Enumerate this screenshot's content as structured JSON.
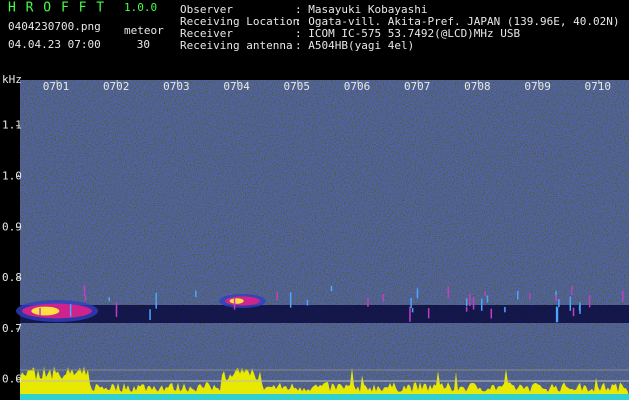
{
  "header": {
    "title": "H R O F F T",
    "version": "1.0.0",
    "filename": "0404230700.png",
    "datetime": "04.04.23 07:00",
    "meteor_label": "meteor",
    "meteor_count": 30
  },
  "info": [
    {
      "label": "Observer",
      "value": ": Masayuki Kobayashi"
    },
    {
      "label": "Receiving Location",
      "value": ": Ogata-vill. Akita-Pref. JAPAN (139.96E, 40.02N)"
    },
    {
      "label": "Receiver",
      "value": ": ICOM IC-575 53.7492(@LCD)MHz USB"
    },
    {
      "label": "Receiving antenna",
      "value": ": A504HB(yagi 4el)"
    }
  ],
  "spectrogram": {
    "unit": "kHz",
    "ylim": [
      0.56,
      1.19
    ],
    "yticks": [
      0.6,
      0.7,
      0.8,
      0.9,
      {
        "value": 1,
        "label": "1.0"
      },
      1.1
    ],
    "time_labels": [
      "0701",
      "0702",
      "0703",
      "0704",
      "0705",
      "0706",
      "0707",
      "0708",
      "0709",
      "0710"
    ]
  }
}
